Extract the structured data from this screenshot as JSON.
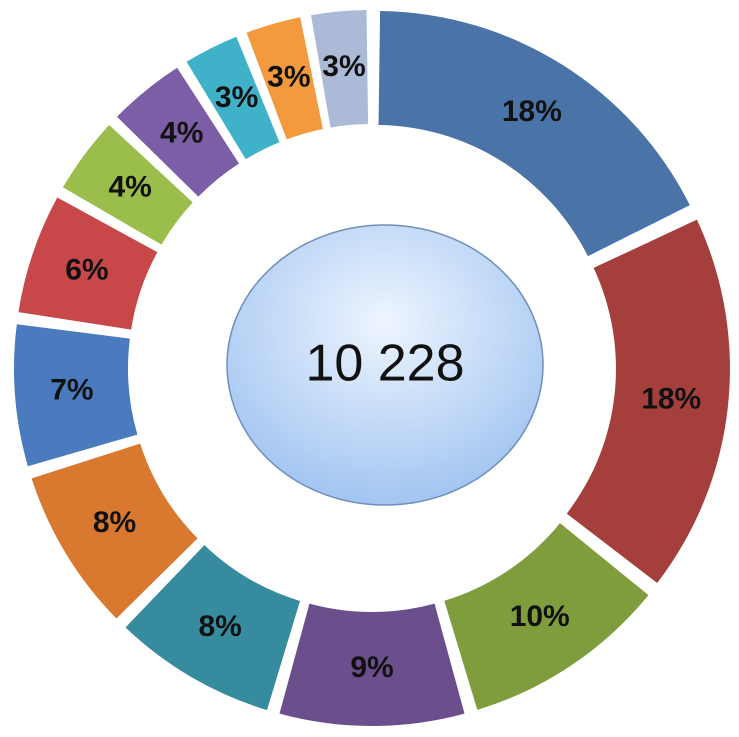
{
  "chart_data": {
    "type": "donut",
    "values": [
      18,
      18,
      10,
      9,
      8,
      8,
      7,
      6,
      4,
      4,
      3,
      3,
      3
    ],
    "value_labels": [
      "18%",
      "18%",
      "10%",
      "9%",
      "8%",
      "8%",
      "7%",
      "6%",
      "4%",
      "4%",
      "3%",
      "3%",
      "3%"
    ],
    "colors": [
      "#4a74a8",
      "#a53f3c",
      "#7f9d3d",
      "#6a4f8c",
      "#378b9f",
      "#d8792f",
      "#4b7bbf",
      "#c8484a",
      "#9bbd4b",
      "#7c5ea7",
      "#3fb2c9",
      "#f39a3e",
      "#abbad6"
    ],
    "center_label": "10 228"
  }
}
